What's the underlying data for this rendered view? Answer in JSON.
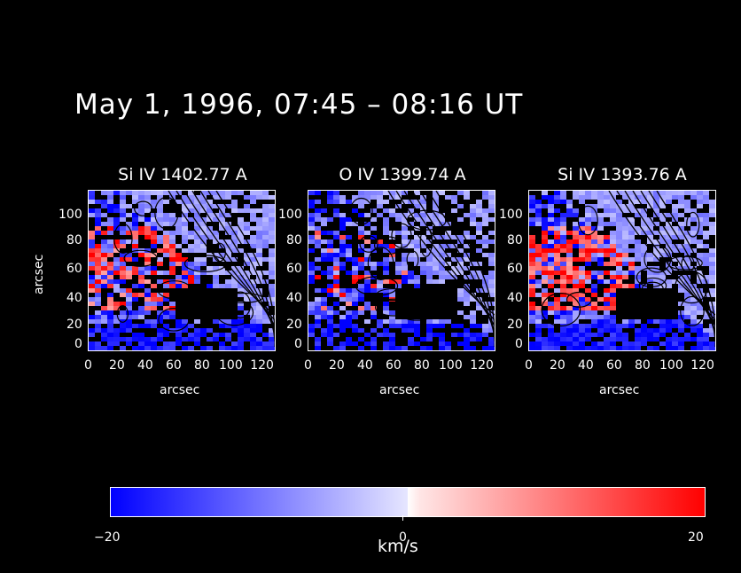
{
  "title": "May 1, 1996, 07:45 – 08:16 UT",
  "panels": [
    {
      "title": "Si IV 1402.77 A"
    },
    {
      "title": "O IV 1399.74 A"
    },
    {
      "title": "Si IV 1393.76 A"
    }
  ],
  "axes": {
    "xlabel": "arcsec",
    "ylabel": "arcsec",
    "xticks": [
      "0",
      "20",
      "40",
      "60",
      "80",
      "100",
      "120"
    ],
    "yticks": [
      "0",
      "20",
      "40",
      "60",
      "80",
      "100"
    ]
  },
  "colorbar": {
    "min_label": "−20",
    "mid_label": "0",
    "max_label": "20",
    "unit": "km/s",
    "colors": {
      "negative": "#0000ff",
      "zero": "#ffffff",
      "positive": "#ff0000"
    }
  }
}
